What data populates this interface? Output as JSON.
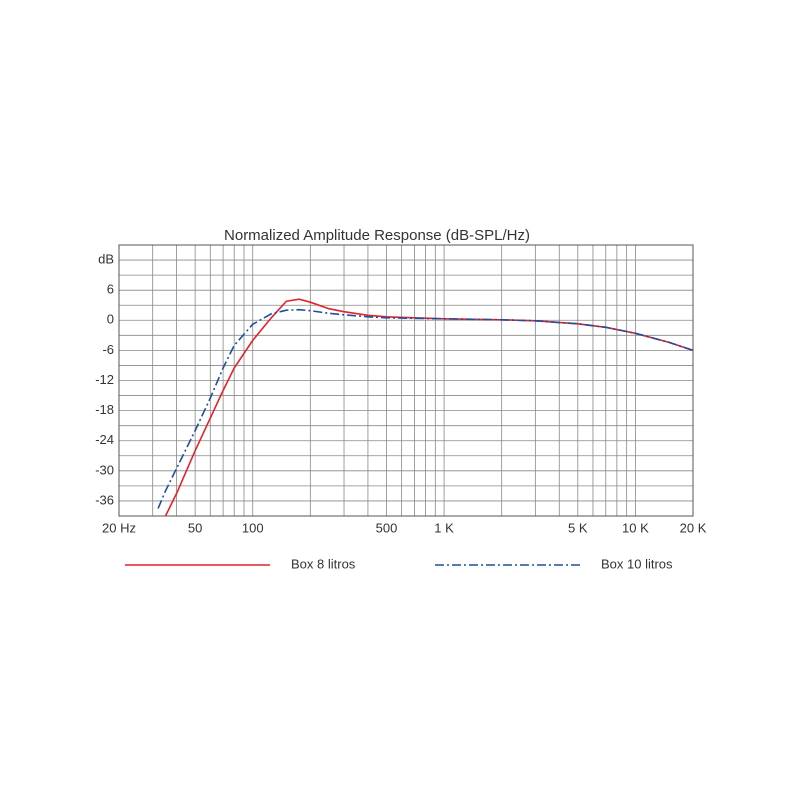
{
  "chart_data": {
    "type": "line",
    "title": "Normalized Amplitude Response (dB-SPL/Hz)",
    "x": [
      32,
      35,
      40,
      50,
      60,
      70,
      80,
      100,
      125,
      150,
      175,
      200,
      250,
      300,
      400,
      500,
      700,
      1000,
      2000,
      3000,
      5000,
      7000,
      10000,
      15000,
      20000
    ],
    "series": [
      {
        "name": "Box 8 litros",
        "color": "#e3232b",
        "style": "solid",
        "values": [
          null,
          -39,
          -34.5,
          -26,
          -19.5,
          -14,
          -9.5,
          -4,
          0.5,
          3.8,
          4.2,
          3.6,
          2.3,
          1.7,
          1.0,
          0.7,
          0.5,
          0.3,
          0.1,
          -0.1,
          -0.7,
          -1.4,
          -2.6,
          -4.4,
          -6
        ]
      },
      {
        "name": "Box 10 litros",
        "color": "#1f4e9c",
        "style": "dashdot",
        "values": [
          -37.5,
          -34,
          -29.5,
          -22,
          -15.5,
          -9.5,
          -5,
          -0.8,
          1.3,
          2.0,
          2.1,
          1.9,
          1.4,
          1.1,
          0.7,
          0.5,
          0.4,
          0.3,
          0.1,
          -0.1,
          -0.7,
          -1.4,
          -2.6,
          -4.4,
          -6
        ]
      }
    ],
    "xlog": true,
    "xlim": [
      20,
      20000
    ],
    "xticks": [
      {
        "value": 20,
        "label": "20 Hz"
      },
      50,
      100,
      500,
      {
        "value": 1000,
        "label": "1 K"
      },
      {
        "value": 5000,
        "label": "5 K"
      },
      {
        "value": 10000,
        "label": "10 K"
      },
      {
        "value": 20000,
        "label": "20 K"
      }
    ],
    "xminorticks": [
      30,
      40,
      60,
      70,
      80,
      90,
      200,
      300,
      400,
      600,
      700,
      800,
      900,
      2000,
      3000,
      4000,
      6000,
      7000,
      8000,
      9000
    ],
    "ylim": [
      -39,
      15
    ],
    "yticks": [
      {
        "value": 12,
        "label": "dB"
      },
      6,
      0,
      -6,
      -12,
      -18,
      -24,
      -30,
      -36
    ],
    "yminorticks": [
      15,
      9,
      3,
      -3,
      -9,
      -15,
      -21,
      -27,
      -33,
      -39
    ],
    "grid": true
  }
}
